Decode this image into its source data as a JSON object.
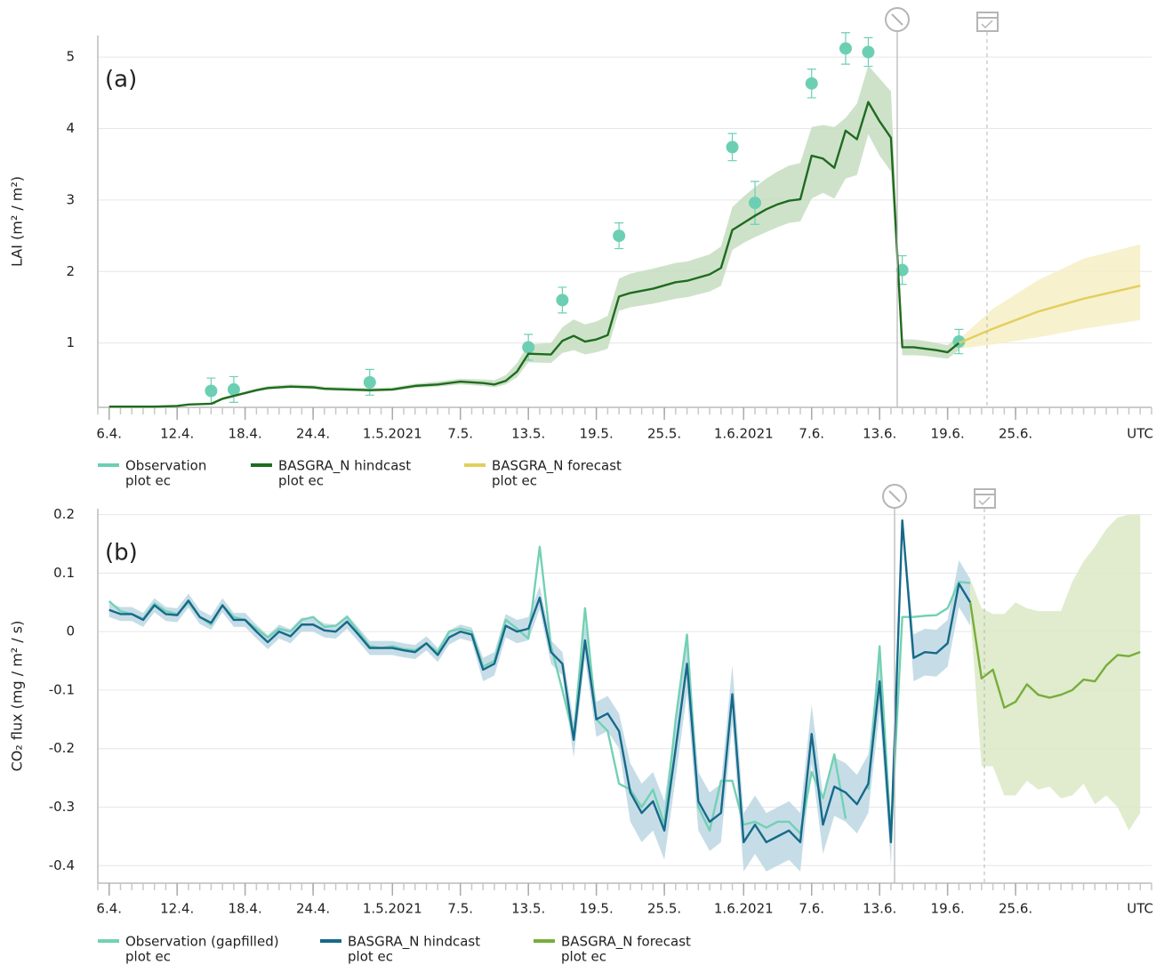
{
  "chart_data": [
    {
      "type": "line",
      "panel_label": "(a)",
      "y_label": "LAI (m² / m²)",
      "x_unit_label": "UTC",
      "xlim": [
        "2021-04-05",
        "2021-07-07"
      ],
      "ylim": [
        0.1,
        5.3
      ],
      "yticks": [
        1,
        2,
        3,
        4,
        5
      ],
      "grid": true,
      "xticks": [
        {
          "value": "2021-04-06",
          "label": "6.4."
        },
        {
          "value": "2021-04-12",
          "label": "12.4."
        },
        {
          "value": "2021-04-18",
          "label": "18.4."
        },
        {
          "value": "2021-04-24",
          "label": "24.4."
        },
        {
          "value": "2021-05-01",
          "label": "1.5.2021"
        },
        {
          "value": "2021-05-07",
          "label": "7.5."
        },
        {
          "value": "2021-05-13",
          "label": "13.5."
        },
        {
          "value": "2021-05-19",
          "label": "19.5."
        },
        {
          "value": "2021-05-25",
          "label": "25.5."
        },
        {
          "value": "2021-06-01",
          "label": "1.6.2021"
        },
        {
          "value": "2021-06-07",
          "label": "7.6."
        },
        {
          "value": "2021-06-13",
          "label": "13.6."
        },
        {
          "value": "2021-06-19",
          "label": "19.6."
        },
        {
          "value": "2021-06-25",
          "label": "25.6."
        }
      ],
      "series": [
        {
          "name": "Observation",
          "subname": "plot ec",
          "type": "scatter",
          "color": "#6ccfb3",
          "x": [
            "2021-04-15",
            "2021-04-17",
            "2021-04-29",
            "2021-05-13",
            "2021-05-16",
            "2021-05-21",
            "2021-05-31",
            "2021-06-02",
            "2021-06-07",
            "2021-06-10",
            "2021-06-12",
            "2021-06-15",
            "2021-06-20"
          ],
          "values": [
            0.33,
            0.35,
            0.45,
            0.94,
            1.6,
            2.5,
            3.74,
            2.96,
            4.63,
            5.12,
            5.07,
            2.02,
            1.02
          ],
          "errors": [
            0.18,
            0.18,
            0.18,
            0.18,
            0.18,
            0.18,
            0.19,
            0.3,
            0.2,
            0.22,
            0.2,
            0.2,
            0.17
          ]
        },
        {
          "name": "BASGRA_N hindcast",
          "subname": "plot ec",
          "color": "#1f6b1f",
          "band_color": "#c6ddc1",
          "x": [
            "2021-04-06",
            "2021-04-10",
            "2021-04-12",
            "2021-04-13",
            "2021-04-15",
            "2021-04-16",
            "2021-04-17",
            "2021-04-18",
            "2021-04-19",
            "2021-04-20",
            "2021-04-22",
            "2021-04-24",
            "2021-04-25",
            "2021-04-27",
            "2021-04-29",
            "2021-05-01",
            "2021-05-03",
            "2021-05-05",
            "2021-05-07",
            "2021-05-09",
            "2021-05-10",
            "2021-05-11",
            "2021-05-12",
            "2021-05-13",
            "2021-05-15",
            "2021-05-16",
            "2021-05-17",
            "2021-05-18",
            "2021-05-19",
            "2021-05-20",
            "2021-05-21",
            "2021-05-22",
            "2021-05-24",
            "2021-05-26",
            "2021-05-27",
            "2021-05-29",
            "2021-05-30",
            "2021-05-31",
            "2021-06-01",
            "2021-06-02",
            "2021-06-03",
            "2021-06-04",
            "2021-06-05",
            "2021-06-06",
            "2021-06-07",
            "2021-06-08",
            "2021-06-09",
            "2021-06-10",
            "2021-06-11",
            "2021-06-12",
            "2021-06-13",
            "2021-06-14",
            "2021-06-15",
            "2021-06-16",
            "2021-06-17",
            "2021-06-18",
            "2021-06-19",
            "2021-06-20"
          ],
          "values": [
            0.11,
            0.11,
            0.12,
            0.14,
            0.15,
            0.22,
            0.26,
            0.3,
            0.34,
            0.37,
            0.39,
            0.38,
            0.36,
            0.35,
            0.34,
            0.35,
            0.4,
            0.42,
            0.46,
            0.44,
            0.42,
            0.47,
            0.6,
            0.85,
            0.84,
            1.03,
            1.1,
            1.02,
            1.05,
            1.11,
            1.65,
            1.7,
            1.76,
            1.85,
            1.87,
            1.96,
            2.05,
            2.58,
            2.68,
            2.78,
            2.87,
            2.94,
            2.99,
            3.01,
            3.62,
            3.58,
            3.45,
            3.97,
            3.85,
            4.37,
            4.1,
            3.87,
            0.94,
            0.94,
            0.92,
            0.9,
            0.87,
            1.0
          ],
          "lower": [
            0.1,
            0.1,
            0.11,
            0.13,
            0.14,
            0.2,
            0.24,
            0.28,
            0.32,
            0.35,
            0.37,
            0.36,
            0.34,
            0.33,
            0.32,
            0.33,
            0.37,
            0.39,
            0.42,
            0.4,
            0.38,
            0.42,
            0.52,
            0.73,
            0.72,
            0.86,
            0.9,
            0.84,
            0.87,
            0.92,
            1.45,
            1.5,
            1.55,
            1.62,
            1.64,
            1.72,
            1.8,
            2.3,
            2.4,
            2.48,
            2.55,
            2.62,
            2.68,
            2.7,
            3.02,
            3.1,
            3.02,
            3.3,
            3.35,
            3.92,
            3.62,
            3.4,
            0.83,
            0.83,
            0.82,
            0.8,
            0.78,
            0.9
          ],
          "upper": [
            0.12,
            0.12,
            0.13,
            0.15,
            0.16,
            0.24,
            0.28,
            0.32,
            0.36,
            0.4,
            0.42,
            0.41,
            0.39,
            0.38,
            0.37,
            0.38,
            0.43,
            0.46,
            0.5,
            0.49,
            0.48,
            0.55,
            0.72,
            0.98,
            1.0,
            1.22,
            1.33,
            1.26,
            1.3,
            1.38,
            1.9,
            1.97,
            2.04,
            2.12,
            2.14,
            2.24,
            2.35,
            2.9,
            3.05,
            3.18,
            3.3,
            3.4,
            3.48,
            3.52,
            4.02,
            4.05,
            4.02,
            4.15,
            4.35,
            4.88,
            4.7,
            4.52,
            1.05,
            1.05,
            1.03,
            1.0,
            0.97,
            1.1
          ]
        },
        {
          "name": "BASGRA_N forecast",
          "subname": "plot ec",
          "color": "#e2cf5c",
          "band_color": "#f6efc6",
          "x": [
            "2021-06-20",
            "2021-06-23",
            "2021-06-27",
            "2021-07-01",
            "2021-07-06"
          ],
          "values": [
            1.0,
            1.2,
            1.44,
            1.62,
            1.8
          ],
          "lower": [
            0.92,
            0.98,
            1.08,
            1.2,
            1.32
          ],
          "upper": [
            1.05,
            1.48,
            1.88,
            2.18,
            2.38
          ]
        }
      ]
    },
    {
      "type": "line",
      "panel_label": "(b)",
      "y_label": "CO₂ flux (mg / m² / s)",
      "x_unit_label": "UTC",
      "xlim": [
        "2021-04-05",
        "2021-07-07"
      ],
      "ylim": [
        -0.43,
        0.21
      ],
      "yticks": [
        0.2,
        0.1,
        0,
        -0.1,
        -0.2,
        -0.3,
        -0.4
      ],
      "grid": true,
      "xticks": [
        {
          "value": "2021-04-06",
          "label": "6.4."
        },
        {
          "value": "2021-04-12",
          "label": "12.4."
        },
        {
          "value": "2021-04-18",
          "label": "18.4."
        },
        {
          "value": "2021-04-24",
          "label": "24.4."
        },
        {
          "value": "2021-05-01",
          "label": "1.5.2021"
        },
        {
          "value": "2021-05-07",
          "label": "7.5."
        },
        {
          "value": "2021-05-13",
          "label": "13.5."
        },
        {
          "value": "2021-05-19",
          "label": "19.5."
        },
        {
          "value": "2021-05-25",
          "label": "25.5."
        },
        {
          "value": "2021-06-01",
          "label": "1.6.2021"
        },
        {
          "value": "2021-06-07",
          "label": "7.6."
        },
        {
          "value": "2021-06-13",
          "label": "13.6."
        },
        {
          "value": "2021-06-19",
          "label": "19.6."
        },
        {
          "value": "2021-06-25",
          "label": "25.6."
        }
      ],
      "x": [
        "2021-04-06",
        "2021-04-07",
        "2021-04-08",
        "2021-04-09",
        "2021-04-10",
        "2021-04-11",
        "2021-04-12",
        "2021-04-13",
        "2021-04-14",
        "2021-04-15",
        "2021-04-16",
        "2021-04-17",
        "2021-04-18",
        "2021-04-19",
        "2021-04-20",
        "2021-04-21",
        "2021-04-22",
        "2021-04-23",
        "2021-04-24",
        "2021-04-25",
        "2021-04-26",
        "2021-04-27",
        "2021-04-28",
        "2021-04-29",
        "2021-04-30",
        "2021-05-01",
        "2021-05-02",
        "2021-05-03",
        "2021-05-04",
        "2021-05-05",
        "2021-05-06",
        "2021-05-07",
        "2021-05-08",
        "2021-05-09",
        "2021-05-10",
        "2021-05-11",
        "2021-05-12",
        "2021-05-13",
        "2021-05-14",
        "2021-05-15",
        "2021-05-16",
        "2021-05-17",
        "2021-05-18",
        "2021-05-19",
        "2021-05-20",
        "2021-05-21",
        "2021-05-22",
        "2021-05-23",
        "2021-05-24",
        "2021-05-25",
        "2021-05-26",
        "2021-05-27",
        "2021-05-28",
        "2021-05-29",
        "2021-05-30",
        "2021-05-31",
        "2021-06-01",
        "2021-06-02",
        "2021-06-03",
        "2021-06-04",
        "2021-06-05",
        "2021-06-06",
        "2021-06-07",
        "2021-06-08",
        "2021-06-09",
        "2021-06-10",
        "2021-06-11",
        "2021-06-12",
        "2021-06-13",
        "2021-06-14",
        "2021-06-15",
        "2021-06-16",
        "2021-06-17",
        "2021-06-18",
        "2021-06-19",
        "2021-06-20",
        "2021-06-21"
      ],
      "series": [
        {
          "name": "Observation (gapfilled)",
          "subname": "plot ec",
          "color": "#72d1b4",
          "values": [
            0.052,
            0.035,
            0.03,
            0.022,
            0.048,
            0.035,
            0.03,
            0.05,
            0.025,
            0.012,
            0.045,
            0.025,
            0.02,
            0.005,
            -0.01,
            0.005,
            0,
            0.02,
            0.025,
            0.008,
            0.01,
            0.025,
            0,
            -0.025,
            -0.028,
            -0.025,
            -0.03,
            -0.032,
            -0.02,
            -0.035,
            0,
            0.005,
            0,
            -0.06,
            -0.05,
            0.02,
            0.005,
            -0.012,
            0.145,
            -0.025,
            -0.1,
            -0.18,
            0.04,
            -0.15,
            -0.17,
            -0.26,
            -0.27,
            -0.3,
            -0.27,
            -0.33,
            -0.15,
            -0.005,
            -0.3,
            -0.34,
            -0.255,
            -0.255,
            -0.33,
            -0.325,
            -0.335,
            -0.325,
            -0.325,
            -0.345,
            -0.24,
            -0.285,
            -0.21,
            -0.32,
            null,
            -0.27,
            -0.025,
            -0.35,
            0.025,
            0.025,
            0.027,
            0.028,
            0.04,
            0.085,
            0.083
          ]
        },
        {
          "name": "BASGRA_N hindcast",
          "subname": "plot ec",
          "color": "#17698a",
          "band_color": "#bcd7e3",
          "values": [
            0.037,
            0.03,
            0.03,
            0.02,
            0.045,
            0.03,
            0.028,
            0.053,
            0.025,
            0.015,
            0.045,
            0.02,
            0.02,
            0,
            -0.018,
            0,
            -0.008,
            0.012,
            0.012,
            0.002,
            0,
            0.017,
            -0.005,
            -0.028,
            -0.028,
            -0.028,
            -0.032,
            -0.035,
            -0.02,
            -0.04,
            -0.01,
            0,
            -0.005,
            -0.065,
            -0.055,
            0.01,
            0,
            0.005,
            0.058,
            -0.035,
            -0.055,
            -0.185,
            -0.015,
            -0.15,
            -0.14,
            -0.17,
            -0.275,
            -0.31,
            -0.29,
            -0.34,
            -0.2,
            -0.055,
            -0.29,
            -0.325,
            -0.31,
            -0.107,
            -0.36,
            -0.33,
            -0.36,
            -0.35,
            -0.34,
            -0.36,
            -0.175,
            -0.33,
            -0.265,
            -0.275,
            -0.295,
            -0.26,
            -0.085,
            -0.36,
            0.19,
            -0.045,
            -0.035,
            -0.037,
            -0.02,
            0.082,
            0.05
          ],
          "lower": [
            0.025,
            0.018,
            0.018,
            0.008,
            0.033,
            0.018,
            0.016,
            0.041,
            0.013,
            0.003,
            0.033,
            0.008,
            0.008,
            -0.012,
            -0.03,
            -0.012,
            -0.02,
            0,
            0,
            -0.01,
            -0.012,
            0.005,
            -0.017,
            -0.04,
            -0.04,
            -0.04,
            -0.044,
            -0.047,
            -0.032,
            -0.052,
            -0.022,
            -0.012,
            -0.017,
            -0.085,
            -0.075,
            -0.01,
            -0.02,
            -0.015,
            0.038,
            -0.055,
            -0.075,
            -0.215,
            -0.045,
            -0.18,
            -0.17,
            -0.2,
            -0.325,
            -0.36,
            -0.34,
            -0.39,
            -0.25,
            -0.105,
            -0.34,
            -0.375,
            -0.36,
            -0.157,
            -0.41,
            -0.38,
            -0.41,
            -0.4,
            -0.39,
            -0.41,
            -0.225,
            -0.38,
            -0.315,
            -0.325,
            -0.345,
            -0.31,
            -0.135,
            -0.4,
            0.18,
            -0.085,
            -0.075,
            -0.077,
            -0.06,
            0.042,
            0.01
          ],
          "upper": [
            0.049,
            0.042,
            0.042,
            0.032,
            0.057,
            0.042,
            0.04,
            0.065,
            0.037,
            0.027,
            0.057,
            0.032,
            0.032,
            0.012,
            -0.006,
            0.012,
            0.004,
            0.024,
            0.024,
            0.014,
            0.012,
            0.029,
            0.007,
            -0.016,
            -0.016,
            -0.016,
            -0.02,
            -0.023,
            -0.008,
            -0.028,
            0.002,
            0.012,
            0.007,
            -0.045,
            -0.035,
            0.03,
            0.02,
            0.025,
            0.078,
            -0.015,
            -0.035,
            -0.155,
            0.015,
            -0.12,
            -0.11,
            -0.14,
            -0.225,
            -0.26,
            -0.24,
            -0.29,
            -0.15,
            -0.005,
            -0.24,
            -0.275,
            -0.26,
            -0.057,
            -0.31,
            -0.28,
            -0.31,
            -0.3,
            -0.29,
            -0.31,
            -0.125,
            -0.28,
            -0.215,
            -0.225,
            -0.245,
            -0.21,
            -0.035,
            -0.32,
            0.2,
            -0.005,
            0.005,
            0.003,
            0.02,
            0.122,
            0.09
          ]
        },
        {
          "name": "BASGRA_N forecast",
          "subname": "plot ec",
          "color": "#78ad3c",
          "band_color": "#dbe9c4",
          "x": [
            "2021-06-21",
            "2021-06-22",
            "2021-06-23",
            "2021-06-24",
            "2021-06-25",
            "2021-06-26",
            "2021-06-27",
            "2021-06-28",
            "2021-06-29",
            "2021-06-30",
            "2021-07-01",
            "2021-07-02",
            "2021-07-03",
            "2021-07-04",
            "2021-07-05",
            "2021-07-06"
          ],
          "values": [
            0.05,
            -0.08,
            -0.065,
            -0.13,
            -0.12,
            -0.09,
            -0.108,
            -0.113,
            -0.108,
            -0.1,
            -0.082,
            -0.085,
            -0.058,
            -0.04,
            -0.042,
            -0.035
          ],
          "lower": [
            0.03,
            -0.23,
            -0.23,
            -0.28,
            -0.28,
            -0.255,
            -0.27,
            -0.265,
            -0.285,
            -0.28,
            -0.26,
            -0.295,
            -0.28,
            -0.3,
            -0.34,
            -0.31
          ],
          "upper": [
            0.09,
            0.04,
            0.03,
            0.03,
            0.05,
            0.04,
            0.035,
            0.035,
            0.035,
            0.085,
            0.12,
            0.145,
            0.175,
            0.195,
            0.2,
            0.2
          ]
        }
      ]
    }
  ]
}
